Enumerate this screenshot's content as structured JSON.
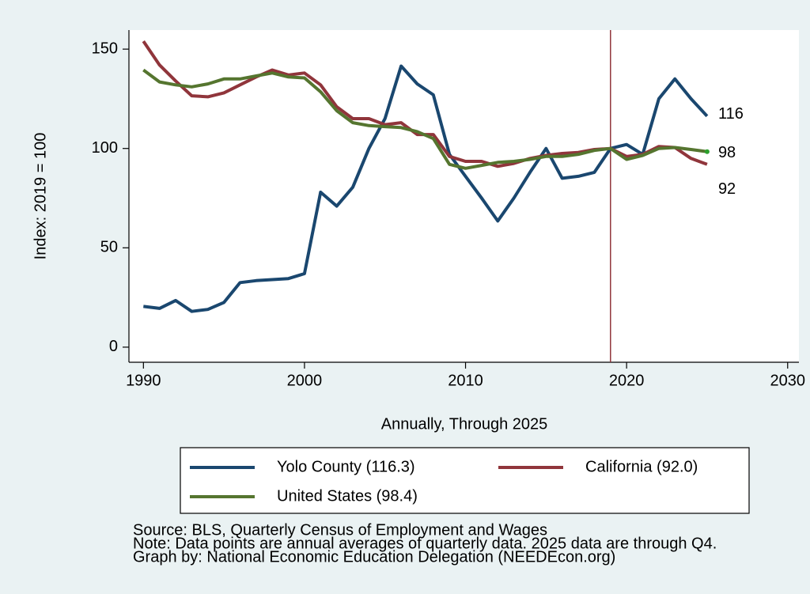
{
  "chart_data": {
    "type": "line",
    "x": [
      1990,
      1991,
      1992,
      1993,
      1994,
      1995,
      1996,
      1997,
      1998,
      1999,
      2000,
      2001,
      2002,
      2003,
      2004,
      2005,
      2006,
      2007,
      2008,
      2009,
      2010,
      2011,
      2012,
      2013,
      2014,
      2015,
      2016,
      2017,
      2018,
      2019,
      2020,
      2021,
      2022,
      2023,
      2024,
      2025
    ],
    "series": [
      {
        "name": "Yolo County (116.3)",
        "color": "#1a476f",
        "end_label": "116",
        "values": [
          20.5,
          19.5,
          23.5,
          18,
          19,
          22.5,
          32.5,
          33.5,
          34,
          34.5,
          37,
          78,
          71,
          80.5,
          100,
          115,
          141.5,
          132.5,
          127,
          97,
          86,
          75,
          63.5,
          75,
          88,
          100,
          85,
          86,
          88,
          100,
          102,
          97,
          125,
          135,
          125,
          116.3
        ]
      },
      {
        "name": "California (92.0)",
        "color": "#90353b",
        "end_label": "92",
        "values": [
          154,
          142,
          134,
          126.5,
          126,
          128,
          132,
          136,
          139.5,
          137,
          138,
          132,
          121,
          115,
          115,
          112,
          113,
          107,
          107,
          96,
          93.5,
          93.5,
          91,
          92.5,
          95,
          96.5,
          97.5,
          98,
          99.5,
          100,
          96,
          97,
          101,
          100.5,
          95,
          92.0
        ]
      },
      {
        "name": "United States (98.4)",
        "color": "#55752f",
        "end_label": "98",
        "values": [
          139.5,
          133.5,
          132,
          131,
          132.5,
          135,
          135,
          136.5,
          138,
          136,
          135.5,
          128.5,
          119,
          113,
          111.5,
          111,
          110.5,
          108.5,
          105,
          92,
          90,
          91.5,
          93,
          93.5,
          94.5,
          96,
          96,
          97,
          99,
          100,
          94.5,
          96.5,
          100,
          100.5,
          99.5,
          98.4
        ]
      }
    ],
    "xlim": [
      1989.1,
      2030.7
    ],
    "xticks": [
      1990,
      2000,
      2010,
      2020,
      2030
    ],
    "ylim": [
      -7.6,
      159.6
    ],
    "yticks": [
      0,
      50,
      100,
      150
    ],
    "vline": 2019,
    "vline_color": "#90353b",
    "xlabel": "Annually, Through 2025",
    "ylabel": "Index: 2019 = 100",
    "notes": [
      "Source: BLS, Quarterly Census of Employment and Wages",
      "Note: Data points are annual averages of quarterly data. 2025 data are through Q4.",
      "Graph by: National Economic Education Delegation (NEEDEcon.org)"
    ]
  }
}
